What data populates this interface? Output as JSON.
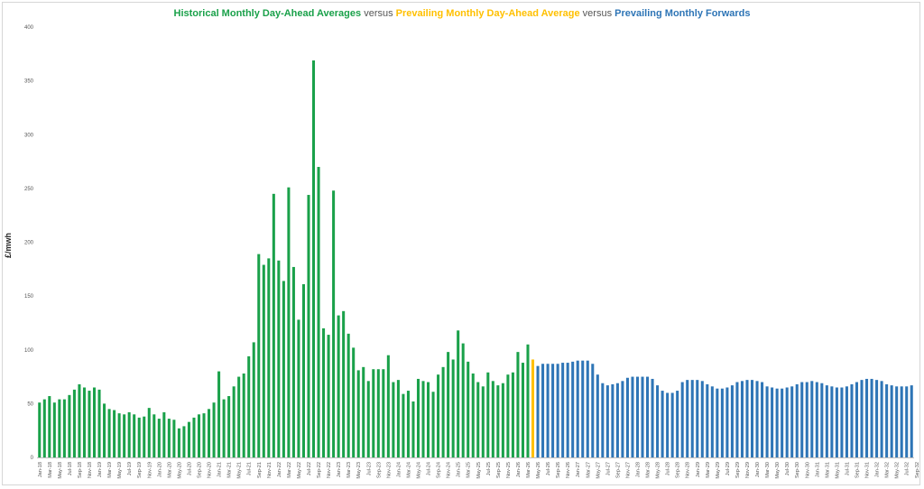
{
  "chart_data": {
    "type": "bar",
    "title_parts": [
      {
        "text": "Historical Monthly Day-Ahead Averages",
        "style": "g"
      },
      {
        "text": " versus ",
        "style": "v"
      },
      {
        "text": "Prevailing Monthly Day-Ahead Average",
        "style": "y"
      },
      {
        "text": " versus ",
        "style": "v"
      },
      {
        "text": "Prevailing Monthly Forwards",
        "style": "b"
      }
    ],
    "ylabel": "£/mwh",
    "ylim": [
      0,
      400
    ],
    "yticks": [
      0,
      50,
      100,
      150,
      200,
      250,
      300,
      350,
      400
    ],
    "grid": false,
    "legend": "none",
    "colors": {
      "historical": "#1aa14a",
      "prevailing": "#ffc000",
      "forwards": "#2e75b6"
    },
    "start": "Jan-18",
    "tick_step": 2,
    "series": [
      {
        "key": "historical",
        "start_index": 0,
        "values": [
          51,
          54,
          57,
          51,
          54,
          54,
          58,
          63,
          68,
          65,
          62,
          65,
          63,
          50,
          45,
          44,
          41,
          40,
          42,
          40,
          37,
          38,
          46,
          40,
          36,
          42,
          36,
          35,
          27,
          29,
          33,
          37,
          40,
          41,
          45,
          51,
          80,
          54,
          57,
          66,
          75,
          78,
          94,
          107,
          189,
          179,
          185,
          245,
          183,
          164,
          251,
          177,
          128,
          161,
          244,
          369,
          270,
          120,
          114,
          248,
          132,
          136,
          115,
          102,
          81,
          84,
          71,
          82,
          82,
          82,
          95,
          70,
          72,
          59,
          62,
          52,
          73,
          71,
          70,
          61,
          77,
          84,
          98,
          91,
          118,
          106,
          89,
          78,
          70,
          66,
          79,
          71,
          67,
          69,
          77,
          79,
          98,
          88,
          105
        ]
      },
      {
        "key": "prevailing",
        "start_index": 99,
        "values": [
          91
        ]
      },
      {
        "key": "forwards",
        "start_index": 100,
        "values": [
          85,
          87,
          87,
          87,
          87,
          88,
          88,
          89,
          90,
          90,
          90,
          87,
          77,
          69,
          67,
          68,
          69,
          71,
          74,
          75,
          75,
          75,
          75,
          73,
          67,
          62,
          60,
          60,
          62,
          70,
          72,
          72,
          72,
          71,
          68,
          66,
          64,
          64,
          65,
          67,
          70,
          71,
          72,
          72,
          71,
          70,
          66,
          65,
          64,
          64,
          65,
          66,
          68,
          70,
          70,
          71,
          70,
          69,
          67,
          66,
          65,
          65,
          66,
          68,
          70,
          72,
          73,
          73,
          72,
          71,
          68,
          67,
          66,
          66,
          66,
          67
        ]
      }
    ],
    "x_ticks": [
      "Jan-18",
      "Mar-18",
      "May-18",
      "Jul-18",
      "Sep-18",
      "Nov-18",
      "Jan-19",
      "Mar-19",
      "May-19",
      "Jul-19",
      "Sep-19",
      "Nov-19",
      "Jan-20",
      "Mar-20",
      "May-20",
      "Jul-20",
      "Sep-20",
      "Nov-20",
      "Jan-21",
      "Mar-21",
      "May-21",
      "Jul-21",
      "Sep-21",
      "Nov-21",
      "Jan-22",
      "Mar-22",
      "May-22",
      "Jul-22",
      "Sep-22",
      "Nov-22",
      "Jan-23",
      "Mar-23",
      "May-23",
      "Jul-23",
      "Sep-23",
      "Nov-23",
      "Jan-24",
      "Mar-24",
      "May-24",
      "Jul-24",
      "Sep-24",
      "Nov-24",
      "Jan-25",
      "Mar-25",
      "May-25",
      "Jul-25",
      "Sep-25",
      "Nov-25",
      "Jan-26",
      "Mar-26",
      "May-26",
      "Jul-26",
      "Sep-26",
      "Nov-26",
      "Jan-27",
      "Mar-27",
      "May-27",
      "Jul-27",
      "Sep-27",
      "Nov-27",
      "Jan-28",
      "Mar-28",
      "May-28",
      "Jul-28",
      "Sep-28",
      "Nov-28",
      "Jan-29",
      "Mar-29",
      "May-29",
      "Jul-29",
      "Sep-29",
      "Nov-29",
      "Jan-30",
      "Mar-30",
      "May-30",
      "Jul-30",
      "Sep-30",
      "Nov-30",
      "Jan-31",
      "Mar-31",
      "May-31",
      "Jul-31",
      "Sep-31",
      "Nov-31",
      "Jan-32",
      "Mar-32",
      "May-32",
      "Jul-32",
      "Sep-32"
    ]
  }
}
